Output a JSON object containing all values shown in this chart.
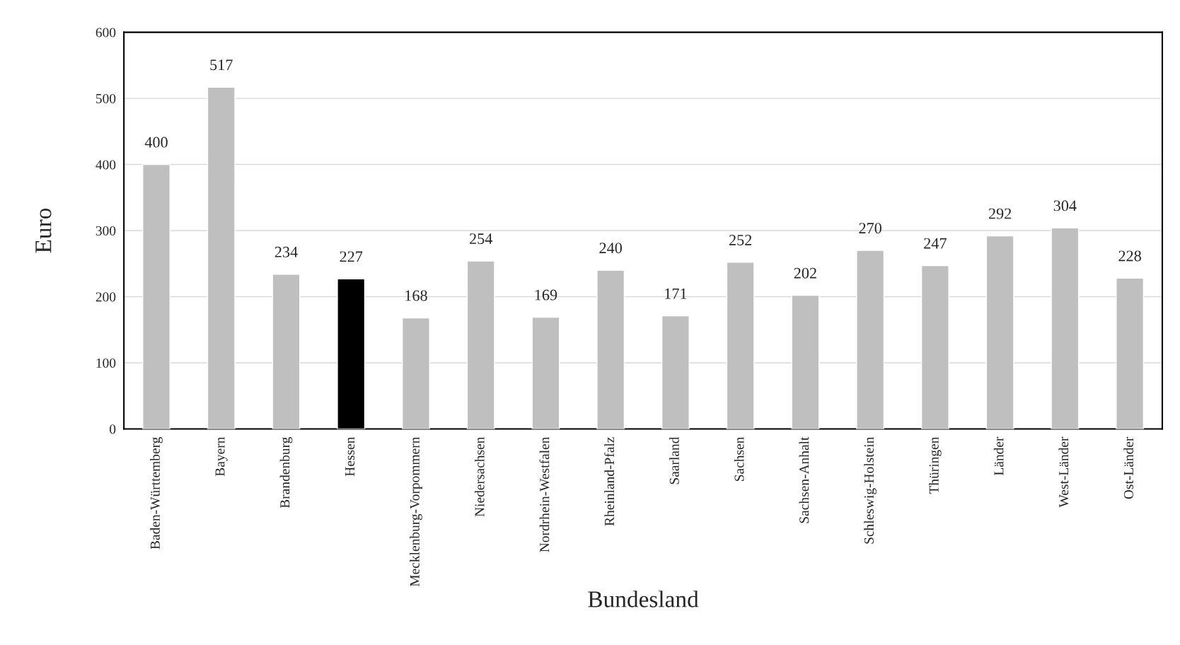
{
  "chart_data": {
    "type": "bar",
    "xlabel": "Bundesland",
    "ylabel": "Euro",
    "categories": [
      "Baden-Württemberg",
      "Bayern",
      "Brandenburg",
      "Hessen",
      "Mecklenburg-Vorpommern",
      "Niedersachsen",
      "Nordrhein-Westfalen",
      "Rheinland-Pfalz",
      "Saarland",
      "Sachsen",
      "Sachsen-Anhalt",
      "Schleswig-Holstein",
      "Thüringen",
      "Länder",
      "West-Länder",
      "Ost-Länder"
    ],
    "values": [
      400,
      517,
      234,
      227,
      168,
      254,
      169,
      240,
      171,
      252,
      202,
      270,
      247,
      292,
      304,
      228
    ],
    "colors": [
      "#bfbfbf",
      "#bfbfbf",
      "#bfbfbf",
      "#000000",
      "#bfbfbf",
      "#bfbfbf",
      "#bfbfbf",
      "#bfbfbf",
      "#bfbfbf",
      "#bfbfbf",
      "#bfbfbf",
      "#bfbfbf",
      "#bfbfbf",
      "#bfbfbf",
      "#bfbfbf",
      "#bfbfbf"
    ],
    "ylim": [
      0,
      600
    ],
    "yticks": [
      0,
      100,
      200,
      300,
      400,
      500,
      600
    ],
    "grid": "y",
    "data_labels": true,
    "legend": false
  }
}
